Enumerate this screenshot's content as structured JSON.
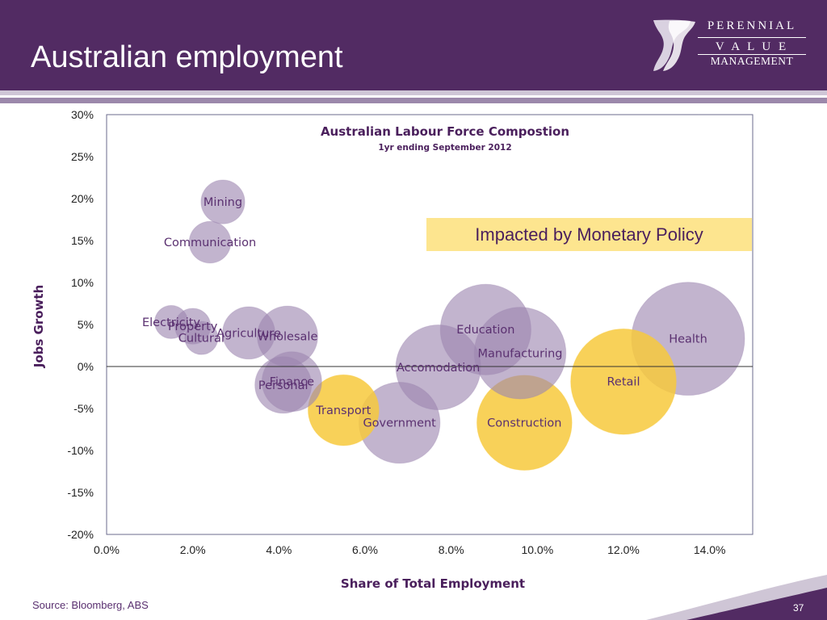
{
  "slide": {
    "title": "Australian employment",
    "source": "Source: Bloomberg, ABS",
    "page_number": "37",
    "callout": "Impacted by Monetary Policy",
    "colors": {
      "header": "#522b63",
      "purple_bubble": "#9c86b0",
      "gold_bubble": "#f7c93c",
      "callout_bg": "#fde58f"
    }
  },
  "logo": {
    "line1": "PERENNIAL",
    "line2": "V A L U E",
    "line3": "MANAGEMENT"
  },
  "chart_data": {
    "type": "bubble",
    "title": "Australian Labour Force Compostion",
    "subtitle": "1yr ending September 2012",
    "xlabel": "Share of Total Employment",
    "ylabel": "Jobs Growth",
    "xlim": [
      0,
      15
    ],
    "ylim": [
      -20,
      30
    ],
    "x_ticks": [
      "0.0%",
      "2.0%",
      "4.0%",
      "6.0%",
      "8.0%",
      "10.0%",
      "12.0%",
      "14.0%"
    ],
    "y_ticks": [
      "30%",
      "25%",
      "20%",
      "15%",
      "10%",
      "5%",
      "0%",
      "-5%",
      "-10%",
      "-15%",
      "-20%"
    ],
    "grid": false,
    "points": [
      {
        "name": "Mining",
        "x": 2.7,
        "y": 19.6,
        "size": 2.1,
        "color": "purple"
      },
      {
        "name": "Communication",
        "x": 2.4,
        "y": 14.8,
        "size": 1.9,
        "color": "purple"
      },
      {
        "name": "Electricity",
        "x": 1.5,
        "y": 5.3,
        "size": 1.2,
        "color": "purple"
      },
      {
        "name": "Property",
        "x": 2.0,
        "y": 4.8,
        "size": 1.4,
        "color": "purple"
      },
      {
        "name": "Cultural",
        "x": 2.2,
        "y": 3.4,
        "size": 1.2,
        "color": "purple"
      },
      {
        "name": "Agriculture",
        "x": 3.3,
        "y": 4.0,
        "size": 3.0,
        "color": "purple"
      },
      {
        "name": "Wholesale",
        "x": 4.2,
        "y": 3.6,
        "size": 4.0,
        "color": "purple"
      },
      {
        "name": "Personal",
        "x": 4.1,
        "y": -2.2,
        "size": 3.5,
        "color": "purple"
      },
      {
        "name": "Finance",
        "x": 4.3,
        "y": -1.8,
        "size": 3.9,
        "color": "purple"
      },
      {
        "name": "Education",
        "x": 8.8,
        "y": 4.4,
        "size": 9.0,
        "color": "purple"
      },
      {
        "name": "Manufacturing",
        "x": 9.6,
        "y": 1.6,
        "size": 9.2,
        "color": "purple"
      },
      {
        "name": "Accomodation",
        "x": 7.7,
        "y": -0.1,
        "size": 7.9,
        "color": "purple"
      },
      {
        "name": "Government",
        "x": 6.8,
        "y": -6.7,
        "size": 7.2,
        "color": "purple"
      },
      {
        "name": "Health",
        "x": 13.5,
        "y": 3.3,
        "size": 14.0,
        "color": "purple"
      },
      {
        "name": "Transport",
        "x": 5.5,
        "y": -5.2,
        "size": 5.5,
        "color": "gold"
      },
      {
        "name": "Retail",
        "x": 12.0,
        "y": -1.8,
        "size": 12.2,
        "color": "gold"
      },
      {
        "name": "Construction",
        "x": 9.7,
        "y": -6.7,
        "size": 9.9,
        "color": "gold"
      }
    ]
  }
}
